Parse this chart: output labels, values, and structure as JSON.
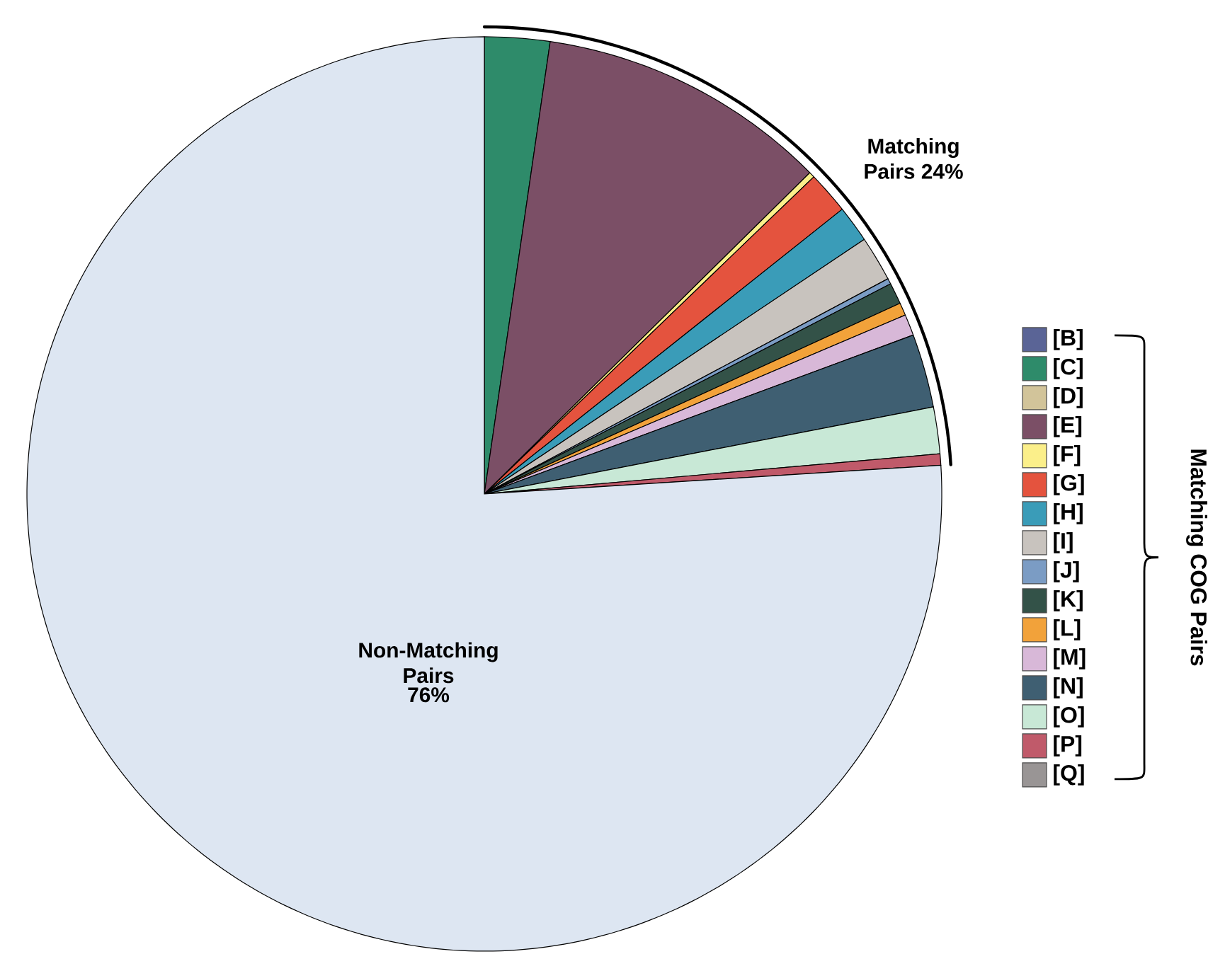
{
  "chart_data": {
    "type": "pie",
    "categories": [
      "[B]",
      "[C]",
      "[D]",
      "[E]",
      "[F]",
      "[G]",
      "[H]",
      "[I]",
      "[J]",
      "[K]",
      "[L]",
      "[M]",
      "[N]",
      "[O]",
      "[P]",
      "[Q]",
      "Non-Matching Pairs"
    ],
    "values": [
      0,
      2.3,
      0,
      10.3,
      0.2,
      1.5,
      1.3,
      1.6,
      0.2,
      0.75,
      0.45,
      0.75,
      2.6,
      1.65,
      0.4,
      0,
      76
    ],
    "colors": [
      "#5a6496",
      "#2e8b6a",
      "#d2c49a",
      "#7b4f66",
      "#fbef8a",
      "#e4533e",
      "#3a9cb8",
      "#c8c3be",
      "#7b9cc4",
      "#335248",
      "#f2a23a",
      "#d8b8d8",
      "#3f5f72",
      "#c8e8d6",
      "#c05a6a",
      "#999595",
      "#dde6f2"
    ],
    "value_labels": [
      null,
      null,
      null,
      null,
      null,
      null,
      null,
      null,
      null,
      null,
      null,
      null,
      null,
      null,
      null,
      null,
      "76%"
    ],
    "legend": "right",
    "legend_title": "Matching COG Pairs",
    "annotations": [
      "Matching Pairs 24%"
    ]
  }
}
